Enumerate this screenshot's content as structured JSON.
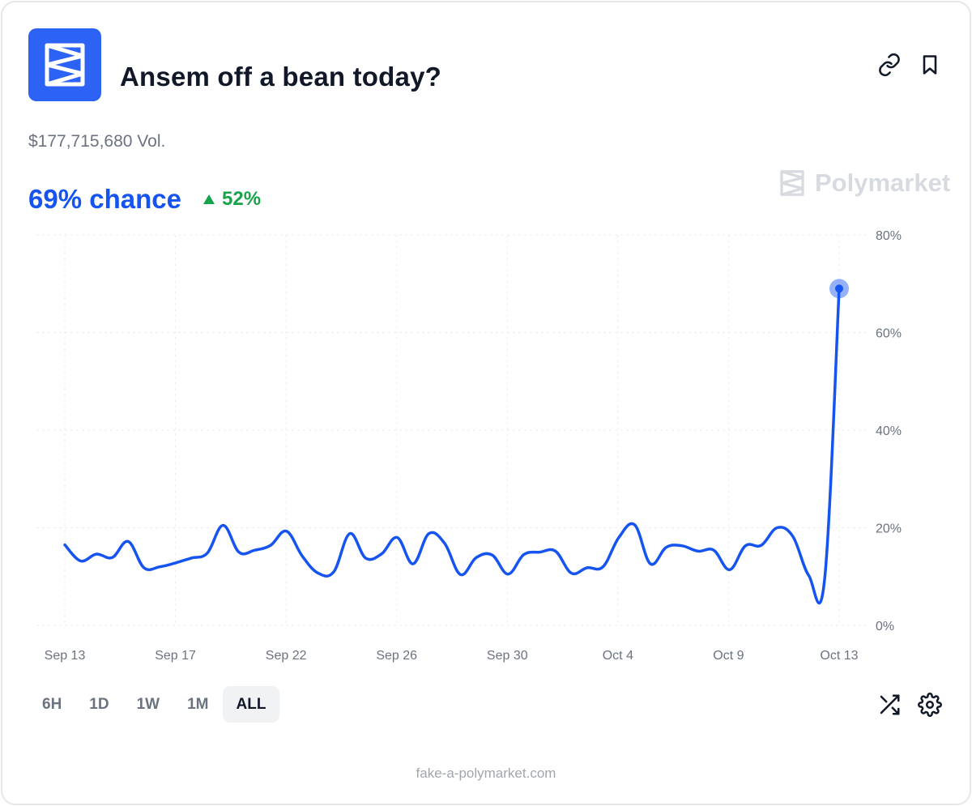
{
  "header": {
    "title": "Ansem off a bean today?",
    "logo_icon": "polymarket-logo-icon",
    "link_icon": "link-icon",
    "bookmark_icon": "bookmark-icon"
  },
  "market": {
    "volume": "$177,715,680 Vol.",
    "chance": "69% chance",
    "delta": "52%",
    "delta_direction": "up"
  },
  "brand": {
    "name": "Polymarket"
  },
  "colors": {
    "accent": "#1554f0",
    "logo_bg": "#2d63f5",
    "positive": "#16a34a",
    "muted": "#6b7280"
  },
  "chart_data": {
    "type": "line",
    "x_ticks": [
      "Sep 13",
      "Sep 17",
      "Sep 22",
      "Sep 26",
      "Sep 30",
      "Oct 4",
      "Oct 9",
      "Oct 13"
    ],
    "y_ticks": [
      "0%",
      "20%",
      "40%",
      "60%",
      "80%"
    ],
    "ylim": [
      0,
      80
    ],
    "grid": true,
    "series": [
      {
        "values": [
          16.5,
          13.2,
          14.6,
          13.9,
          17.2,
          11.8,
          12.0,
          12.8,
          13.8,
          14.8,
          20.5,
          15.0,
          15.4,
          16.4,
          19.3,
          14.2,
          10.7,
          11.0,
          18.8,
          13.8,
          14.6,
          18.0,
          12.6,
          18.8,
          16.8,
          10.4,
          13.9,
          14.4,
          10.5,
          14.5,
          15.0,
          15.2,
          10.7,
          11.8,
          12.0,
          18.0,
          20.6,
          12.6,
          16.0,
          16.3,
          15.2,
          15.4,
          11.4,
          16.3,
          16.4,
          20.0,
          18.2,
          10.2,
          9.4,
          69.0
        ]
      }
    ],
    "last_value": 69
  },
  "controls": {
    "ranges": [
      "6H",
      "1D",
      "1W",
      "1M",
      "ALL"
    ],
    "active_range": "ALL",
    "shuffle_icon": "shuffle-icon",
    "settings_icon": "gear-icon"
  },
  "footer": {
    "text": "fake-a-polymarket.com"
  }
}
